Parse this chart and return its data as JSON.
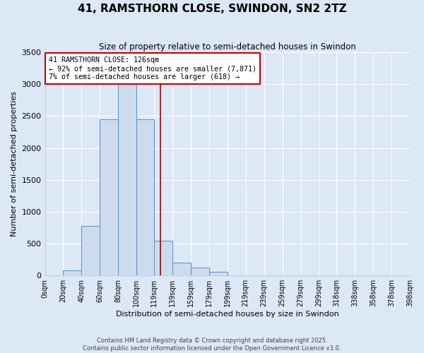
{
  "title": "41, RAMSTHORN CLOSE, SWINDON, SN2 2TZ",
  "subtitle": "Size of property relative to semi-detached houses in Swindon",
  "xlabel": "Distribution of semi-detached houses by size in Swindon",
  "ylabel": "Number of semi-detached properties",
  "footer1": "Contains HM Land Registry data © Crown copyright and database right 2025.",
  "footer2": "Contains public sector information licensed under the Open Government Licence v3.0.",
  "annotation_title": "41 RAMSTHORN CLOSE: 126sqm",
  "annotation_line1": "← 92% of semi-detached houses are smaller (7,871)",
  "annotation_line2": "7% of semi-detached houses are larger (618) →",
  "bin_edges": [
    0,
    20,
    40,
    60,
    80,
    100,
    119,
    139,
    159,
    179,
    199,
    219,
    239,
    259,
    279,
    299,
    318,
    338,
    358,
    378,
    398
  ],
  "bin_labels": [
    "0sqm",
    "20sqm",
    "40sqm",
    "60sqm",
    "80sqm",
    "100sqm",
    "119sqm",
    "139sqm",
    "159sqm",
    "179sqm",
    "199sqm",
    "219sqm",
    "239sqm",
    "259sqm",
    "279sqm",
    "299sqm",
    "318sqm",
    "338sqm",
    "358sqm",
    "378sqm",
    "398sqm"
  ],
  "counts": [
    0,
    80,
    780,
    2450,
    3000,
    2450,
    550,
    200,
    120,
    60,
    0,
    0,
    0,
    0,
    0,
    0,
    0,
    0,
    0,
    0
  ],
  "bar_color": "#ccdcee",
  "bar_edge_color": "#5b8ec4",
  "line_color": "#aa0000",
  "annotation_box_color": "#ffffff",
  "annotation_box_edge": "#cc0000",
  "background_color": "#dce8f5",
  "grid_color": "#ffffff",
  "ylim": [
    0,
    3500
  ],
  "yticks": [
    0,
    500,
    1000,
    1500,
    2000,
    2500,
    3000,
    3500
  ],
  "property_line_x": 126,
  "figsize": [
    6.0,
    5.0
  ],
  "dpi": 100
}
